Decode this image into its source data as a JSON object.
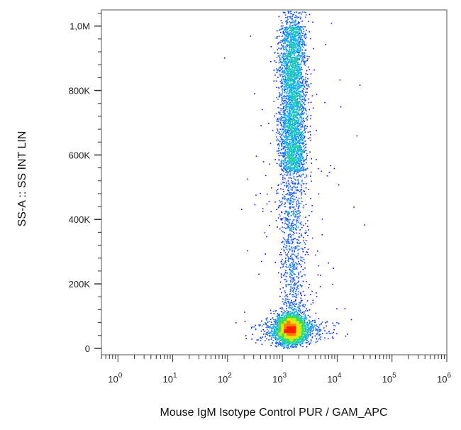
{
  "chart_data": {
    "type": "scatter",
    "title": "",
    "xlabel": "Mouse IgM Isotype Control PUR / GAM_APC",
    "ylabel": "SS-A :: SS INT LIN",
    "x_scale": "log",
    "xlim": [
      0.5,
      1000000
    ],
    "ylim": [
      -20000,
      1050000
    ],
    "x_ticks": [
      {
        "value": 1,
        "base": "10",
        "exp": "0"
      },
      {
        "value": 10,
        "base": "10",
        "exp": "1"
      },
      {
        "value": 100,
        "base": "10",
        "exp": "2"
      },
      {
        "value": 1000,
        "base": "10",
        "exp": "3"
      },
      {
        "value": 10000,
        "base": "10",
        "exp": "4"
      },
      {
        "value": 100000,
        "base": "10",
        "exp": "5"
      },
      {
        "value": 1000000,
        "base": "10",
        "exp": "6"
      }
    ],
    "y_ticks": [
      {
        "value": 0,
        "label": "0"
      },
      {
        "value": 200000,
        "label": "200K"
      },
      {
        "value": 400000,
        "label": "400K"
      },
      {
        "value": 600000,
        "label": "600K"
      },
      {
        "value": 800000,
        "label": "800K"
      },
      {
        "value": 1000000,
        "label": "1,0M"
      }
    ],
    "grid": false,
    "legend": "none",
    "colormap": [
      "#1010ff",
      "#1060ff",
      "#10b0f0",
      "#20d0a0",
      "#40e040",
      "#c0f020",
      "#ffe000",
      "#ff8000",
      "#ff2000"
    ],
    "populations": [
      {
        "shape": "ellipse",
        "x_center": 1400,
        "x_log_sd": 0.13,
        "y_center": 60000,
        "y_sd": 22000,
        "density": "high",
        "points": 3200
      },
      {
        "shape": "column",
        "x_center": 1500,
        "x_log_sd": 0.12,
        "y_range": [
          80000,
          1050000
        ],
        "dense_range": [
          550000,
          1000000
        ],
        "density": "medium",
        "points": 4200
      },
      {
        "shape": "cloud",
        "x_center": 1500,
        "x_log_sd": 0.35,
        "y_center": 60000,
        "y_sd": 20000,
        "density": "low",
        "points": 500
      },
      {
        "shape": "cloud",
        "x_center": 1500,
        "x_log_sd": 0.4,
        "y_center": 500000,
        "y_sd": 300000,
        "density": "sparse",
        "points": 250
      }
    ]
  }
}
